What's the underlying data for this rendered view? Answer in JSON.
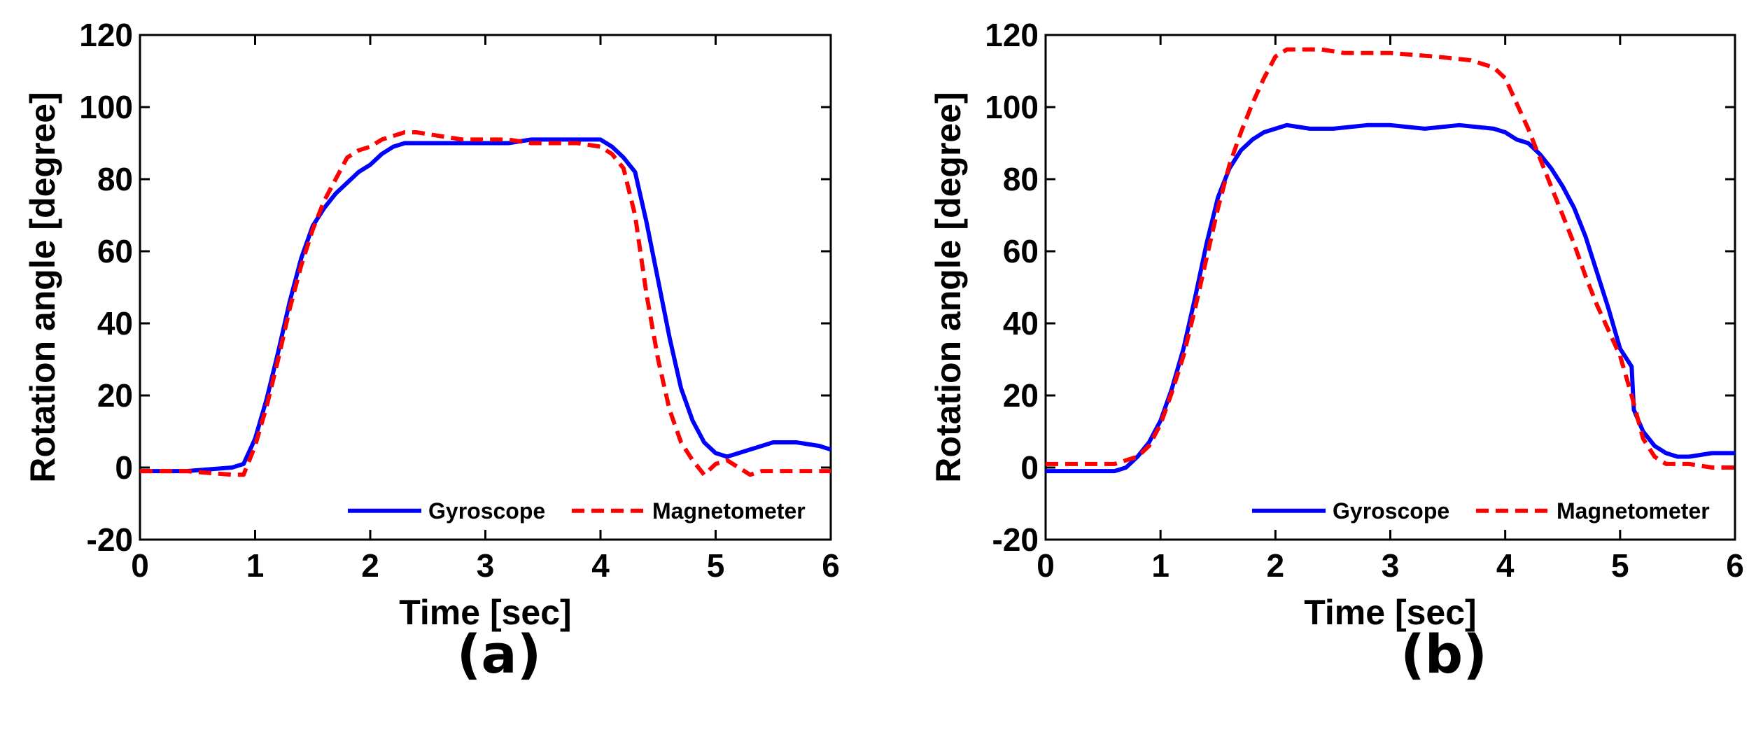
{
  "figure": {
    "captions": [
      "(a)",
      "(b)"
    ]
  },
  "chart_data": [
    {
      "type": "line",
      "panel": "(a)",
      "xlabel": "Time [sec]",
      "ylabel": "Rotation angle [degree]",
      "xlim": [
        0,
        6
      ],
      "ylim": [
        -20,
        120
      ],
      "xticks": [
        0,
        1,
        2,
        3,
        4,
        5,
        6
      ],
      "yticks": [
        -20,
        0,
        20,
        40,
        60,
        80,
        100,
        120
      ],
      "grid": false,
      "legend_position": "bottom-right",
      "series": [
        {
          "name": "Gyroscope",
          "color": "#0000ff",
          "style": "solid",
          "x": [
            0,
            0.4,
            0.8,
            0.9,
            1.0,
            1.1,
            1.2,
            1.3,
            1.4,
            1.5,
            1.6,
            1.7,
            1.8,
            1.9,
            2.0,
            2.1,
            2.2,
            2.3,
            2.4,
            2.6,
            2.8,
            3.0,
            3.2,
            3.4,
            3.6,
            3.8,
            4.0,
            4.1,
            4.2,
            4.3,
            4.4,
            4.5,
            4.6,
            4.7,
            4.8,
            4.9,
            5.0,
            5.1,
            5.3,
            5.5,
            5.7,
            5.9,
            6.0
          ],
          "y": [
            -1,
            -1,
            0,
            1,
            8,
            19,
            32,
            46,
            58,
            67,
            72,
            76,
            79,
            82,
            84,
            87,
            89,
            90,
            90,
            90,
            90,
            90,
            90,
            91,
            91,
            91,
            91,
            89,
            86,
            82,
            68,
            52,
            36,
            22,
            13,
            7,
            4,
            3,
            5,
            7,
            7,
            6,
            5
          ]
        },
        {
          "name": "Magnetometer",
          "color": "#ff0000",
          "style": "dashed",
          "x": [
            0,
            0.4,
            0.8,
            0.9,
            1.0,
            1.1,
            1.2,
            1.3,
            1.4,
            1.5,
            1.6,
            1.7,
            1.8,
            1.9,
            2.0,
            2.1,
            2.2,
            2.3,
            2.4,
            2.6,
            2.8,
            3.0,
            3.2,
            3.4,
            3.6,
            3.8,
            4.0,
            4.1,
            4.2,
            4.3,
            4.4,
            4.5,
            4.6,
            4.7,
            4.8,
            4.9,
            5.0,
            5.1,
            5.2,
            5.3,
            5.4,
            5.6,
            5.8,
            6.0
          ],
          "y": [
            -1,
            -1,
            -2,
            -2,
            6,
            17,
            30,
            44,
            56,
            66,
            74,
            80,
            86,
            88,
            89,
            91,
            92,
            93,
            93,
            92,
            91,
            91,
            91,
            90,
            90,
            90,
            89,
            87,
            83,
            70,
            48,
            30,
            16,
            7,
            2,
            -2,
            1,
            2,
            0,
            -2,
            -1,
            -1,
            -1,
            -1
          ]
        }
      ]
    },
    {
      "type": "line",
      "panel": "(b)",
      "xlabel": "Time [sec]",
      "ylabel": "Rotation angle [degree]",
      "xlim": [
        0,
        6
      ],
      "ylim": [
        -20,
        120
      ],
      "xticks": [
        0,
        1,
        2,
        3,
        4,
        5,
        6
      ],
      "yticks": [
        -20,
        0,
        20,
        40,
        60,
        80,
        100,
        120
      ],
      "grid": false,
      "legend_position": "bottom-right",
      "series": [
        {
          "name": "Gyroscope",
          "color": "#0000ff",
          "style": "solid",
          "x": [
            0,
            0.4,
            0.6,
            0.7,
            0.8,
            0.9,
            1.0,
            1.1,
            1.2,
            1.3,
            1.4,
            1.5,
            1.6,
            1.7,
            1.8,
            1.9,
            2.0,
            2.1,
            2.3,
            2.5,
            2.8,
            3.0,
            3.3,
            3.6,
            3.9,
            4.0,
            4.1,
            4.2,
            4.3,
            4.4,
            4.5,
            4.6,
            4.7,
            4.8,
            4.9,
            5.0,
            5.1,
            5.12,
            5.2,
            5.3,
            5.4,
            5.5,
            5.6,
            5.8,
            6.0
          ],
          "y": [
            -1,
            -1,
            -1,
            0,
            3,
            7,
            13,
            22,
            33,
            47,
            62,
            75,
            83,
            88,
            91,
            93,
            94,
            95,
            94,
            94,
            95,
            95,
            94,
            95,
            94,
            93,
            91,
            90,
            87,
            83,
            78,
            72,
            64,
            54,
            44,
            33,
            28,
            16,
            10,
            6,
            4,
            3,
            3,
            4,
            4
          ]
        },
        {
          "name": "Magnetometer",
          "color": "#ff0000",
          "style": "dashed",
          "x": [
            0,
            0.4,
            0.6,
            0.7,
            0.8,
            0.9,
            1.0,
            1.1,
            1.2,
            1.3,
            1.4,
            1.5,
            1.6,
            1.7,
            1.8,
            1.9,
            2.0,
            2.1,
            2.2,
            2.4,
            2.6,
            3.0,
            3.4,
            3.7,
            3.9,
            4.0,
            4.1,
            4.2,
            4.3,
            4.4,
            4.5,
            4.6,
            4.7,
            4.8,
            4.9,
            5.0,
            5.1,
            5.2,
            5.3,
            5.4,
            5.6,
            5.8,
            6.0
          ],
          "y": [
            1,
            1,
            1,
            2,
            3,
            6,
            12,
            21,
            31,
            44,
            58,
            72,
            84,
            93,
            101,
            108,
            114,
            116,
            116,
            116,
            115,
            115,
            114,
            113,
            111,
            108,
            101,
            94,
            86,
            78,
            70,
            62,
            53,
            45,
            38,
            31,
            20,
            8,
            3,
            1,
            1,
            0,
            0
          ]
        }
      ]
    }
  ]
}
